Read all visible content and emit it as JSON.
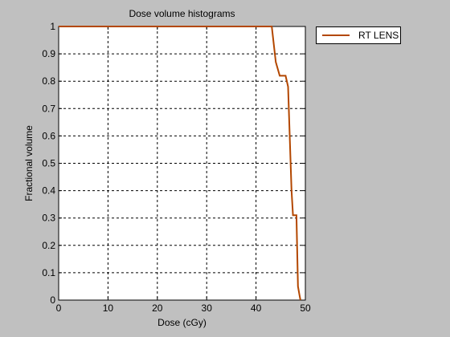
{
  "chart_data": {
    "type": "line",
    "title": "Dose volume histograms",
    "xlabel": "Dose (cGy)",
    "ylabel": "Fractional volume",
    "xlim": [
      0,
      50
    ],
    "ylim": [
      0,
      1
    ],
    "xticks": [
      "0",
      "10",
      "20",
      "30",
      "40",
      "50"
    ],
    "yticks": [
      "0",
      "0.1",
      "0.2",
      "0.3",
      "0.4",
      "0.5",
      "0.6",
      "0.7",
      "0.8",
      "0.9",
      "1"
    ],
    "grid": true,
    "legend_position": "outside-top-right",
    "series": [
      {
        "name": "RT LENS",
        "color": "#b34700",
        "x": [
          0,
          43.2,
          44.0,
          44.8,
          45.0,
          46.0,
          46.5,
          47.2,
          47.5,
          48.2,
          48.5,
          48.8,
          49.0
        ],
        "y": [
          1,
          1,
          0.87,
          0.82,
          0.82,
          0.82,
          0.78,
          0.4,
          0.31,
          0.31,
          0.05,
          0.02,
          0
        ]
      }
    ]
  }
}
